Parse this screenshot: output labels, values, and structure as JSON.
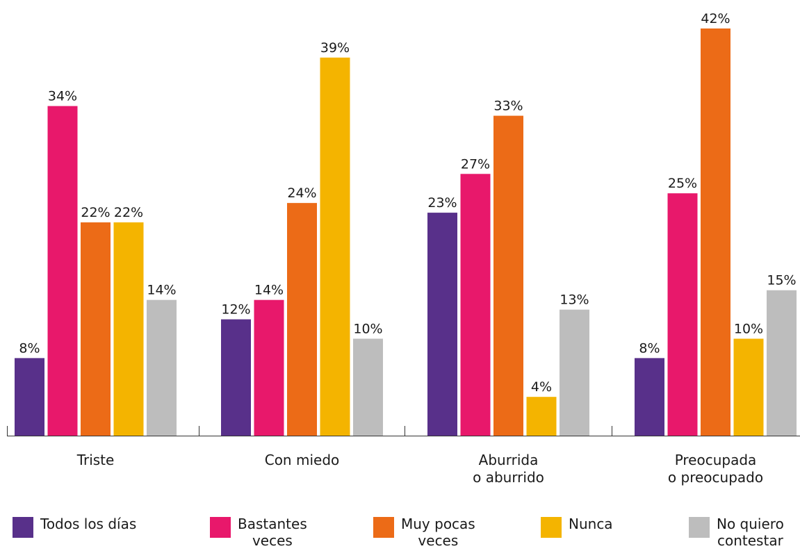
{
  "chart_data": {
    "type": "bar",
    "categories": [
      [
        "Triste"
      ],
      [
        "Con miedo"
      ],
      [
        "Aburrida",
        "o aburrido"
      ],
      [
        "Preocupada",
        "o preocupado"
      ]
    ],
    "series": [
      {
        "name": "Todos los días",
        "color": "#58308a",
        "values": [
          8,
          12,
          23,
          8
        ]
      },
      {
        "name": "Bastantes veces",
        "color": "#e8186b",
        "values": [
          34,
          14,
          27,
          25
        ]
      },
      {
        "name": "Muy pocas veces",
        "color": "#ec6b17",
        "values": [
          22,
          24,
          33,
          42
        ]
      },
      {
        "name": "Nunca",
        "color": "#f4b400",
        "values": [
          22,
          39,
          4,
          10
        ]
      },
      {
        "name": "No quiero contestar",
        "color": "#bdbdbd",
        "values": [
          14,
          10,
          13,
          15
        ]
      }
    ],
    "value_suffix": "%",
    "ylim": [
      0,
      42
    ],
    "legend_position": "bottom",
    "grid": false
  },
  "legend": [
    {
      "lines": [
        "Todos los días"
      ],
      "color": "#58308a"
    },
    {
      "lines": [
        "Bastantes",
        "veces"
      ],
      "color": "#e8186b"
    },
    {
      "lines": [
        "Muy pocas",
        "veces"
      ],
      "color": "#ec6b17"
    },
    {
      "lines": [
        "Nunca"
      ],
      "color": "#f4b400"
    },
    {
      "lines": [
        "No quiero",
        "contestar"
      ],
      "color": "#bdbdbd"
    }
  ]
}
